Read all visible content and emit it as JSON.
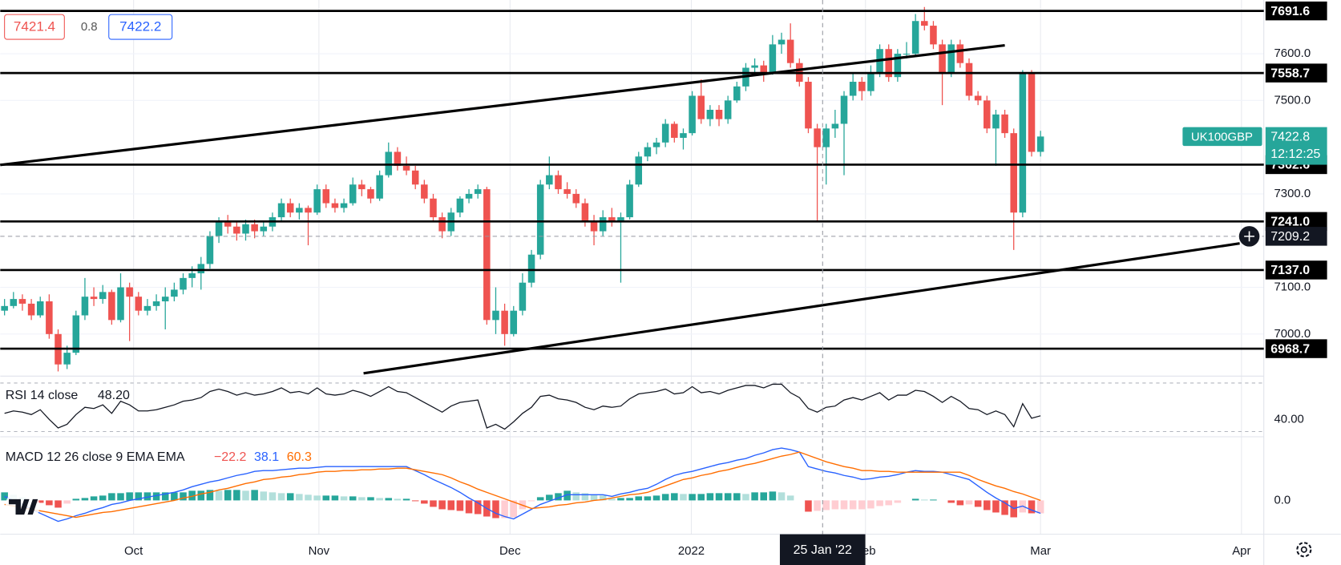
{
  "chart_data": {
    "type": "candlestick",
    "symbol": "UK100GBP",
    "bid": 7421.4,
    "spread": 0.8,
    "ask": 7422.2,
    "last_price": 7422.8,
    "countdown": "12:12:25",
    "up_color": "#26a69a",
    "down_color": "#ef5350",
    "xlim": [
      -0.48,
      141
    ],
    "xticks": [
      {
        "value": 14.45,
        "label": "Oct"
      },
      {
        "value": 35.2,
        "label": "Nov"
      },
      {
        "value": 56.6,
        "label": "Dec"
      },
      {
        "value": 76.9,
        "label": "2022"
      },
      {
        "value": 96.4,
        "label": "Feb"
      },
      {
        "value": 116,
        "label": "Mar"
      },
      {
        "value": 138.5,
        "label": "Apr"
      }
    ],
    "ylim": [
      6910,
      7715
    ],
    "yticks": [
      {
        "value": 7000,
        "label": "7000.0"
      },
      {
        "value": 7100,
        "label": "7100.0"
      },
      {
        "value": 7300,
        "label": "7300.0"
      },
      {
        "value": 7500,
        "label": "7500.0"
      },
      {
        "value": 7600,
        "label": "7600.0"
      }
    ],
    "levels": [
      7691.6,
      7558.7,
      7362.6,
      {
        "value": 7241,
        "label": "7241.0"
      },
      {
        "value": 7137,
        "label": "7137.0"
      },
      6968.7
    ],
    "trend_lines": [
      {
        "x": [
          -0.48,
          112
        ],
        "y": [
          7362,
          7618
        ]
      },
      {
        "x": [
          40.2,
          138.3
        ],
        "y": [
          6916,
          7194
        ]
      }
    ],
    "crosshair": {
      "x": 91.6,
      "x_label": "25 Jan '22",
      "price": 7209.2
    },
    "candles": [
      [
        7050,
        7075,
        7040,
        7060
      ],
      [
        7060,
        7090,
        7055,
        7075
      ],
      [
        7075,
        7085,
        7050,
        7065
      ],
      [
        7065,
        7075,
        7030,
        7040
      ],
      [
        7040,
        7080,
        7035,
        7070
      ],
      [
        7070,
        7085,
        6990,
        7000
      ],
      [
        7000,
        7010,
        6920,
        6935
      ],
      [
        6935,
        6975,
        6925,
        6960
      ],
      [
        6960,
        7050,
        6955,
        7040
      ],
      [
        7040,
        7120,
        7030,
        7080
      ],
      [
        7080,
        7100,
        7060,
        7075
      ],
      [
        7075,
        7105,
        7065,
        7090
      ],
      [
        7090,
        7095,
        7020,
        7030
      ],
      [
        7030,
        7130,
        7025,
        7100
      ],
      [
        7100,
        7110,
        6985,
        7080
      ],
      [
        7080,
        7090,
        7040,
        7050
      ],
      [
        7050,
        7075,
        7040,
        7060
      ],
      [
        7060,
        7085,
        7050,
        7070
      ],
      [
        7070,
        7100,
        7010,
        7080
      ],
      [
        7080,
        7110,
        7070,
        7095
      ],
      [
        7095,
        7130,
        7085,
        7120
      ],
      [
        7120,
        7145,
        7100,
        7130
      ],
      [
        7130,
        7165,
        7095,
        7150
      ],
      [
        7150,
        7220,
        7140,
        7210
      ],
      [
        7210,
        7250,
        7195,
        7240
      ],
      [
        7240,
        7255,
        7215,
        7230
      ],
      [
        7230,
        7240,
        7200,
        7215
      ],
      [
        7215,
        7245,
        7200,
        7235
      ],
      [
        7235,
        7245,
        7205,
        7220
      ],
      [
        7220,
        7240,
        7210,
        7230
      ],
      [
        7230,
        7260,
        7220,
        7250
      ],
      [
        7250,
        7290,
        7240,
        7280
      ],
      [
        7280,
        7290,
        7250,
        7260
      ],
      [
        7260,
        7280,
        7245,
        7270
      ],
      [
        7270,
        7275,
        7190,
        7260
      ],
      [
        7260,
        7320,
        7255,
        7310
      ],
      [
        7310,
        7320,
        7270,
        7280
      ],
      [
        7280,
        7290,
        7260,
        7270
      ],
      [
        7270,
        7290,
        7260,
        7280
      ],
      [
        7280,
        7335,
        7275,
        7320
      ],
      [
        7320,
        7330,
        7295,
        7310
      ],
      [
        7310,
        7315,
        7280,
        7290
      ],
      [
        7290,
        7350,
        7285,
        7340
      ],
      [
        7340,
        7410,
        7335,
        7390
      ],
      [
        7390,
        7400,
        7350,
        7360
      ],
      [
        7360,
        7380,
        7340,
        7350
      ],
      [
        7350,
        7360,
        7310,
        7320
      ],
      [
        7320,
        7330,
        7280,
        7290
      ],
      [
        7290,
        7300,
        7240,
        7250
      ],
      [
        7250,
        7260,
        7205,
        7220
      ],
      [
        7220,
        7270,
        7210,
        7260
      ],
      [
        7260,
        7295,
        7250,
        7290
      ],
      [
        7290,
        7310,
        7280,
        7300
      ],
      [
        7300,
        7320,
        7290,
        7310
      ],
      [
        7310,
        7315,
        7020,
        7030
      ],
      [
        7030,
        7100,
        7000,
        7050
      ],
      [
        7050,
        7065,
        6975,
        7000
      ],
      [
        7000,
        7060,
        6995,
        7050
      ],
      [
        7050,
        7130,
        7040,
        7110
      ],
      [
        7110,
        7180,
        7100,
        7170
      ],
      [
        7170,
        7330,
        7160,
        7320
      ],
      [
        7320,
        7380,
        7310,
        7340
      ],
      [
        7340,
        7350,
        7300,
        7310
      ],
      [
        7310,
        7325,
        7290,
        7300
      ],
      [
        7300,
        7310,
        7270,
        7280
      ],
      [
        7280,
        7290,
        7230,
        7240
      ],
      [
        7240,
        7255,
        7190,
        7220
      ],
      [
        7220,
        7265,
        7210,
        7250
      ],
      [
        7250,
        7270,
        7230,
        7240
      ],
      [
        7240,
        7260,
        7110,
        7250
      ],
      [
        7250,
        7330,
        7245,
        7320
      ],
      [
        7320,
        7390,
        7315,
        7380
      ],
      [
        7380,
        7410,
        7370,
        7400
      ],
      [
        7400,
        7420,
        7385,
        7410
      ],
      [
        7410,
        7460,
        7400,
        7450
      ],
      [
        7450,
        7455,
        7410,
        7420
      ],
      [
        7420,
        7440,
        7395,
        7430
      ],
      [
        7430,
        7520,
        7425,
        7510
      ],
      [
        7510,
        7545,
        7450,
        7460
      ],
      [
        7460,
        7490,
        7445,
        7480
      ],
      [
        7480,
        7490,
        7445,
        7460
      ],
      [
        7460,
        7510,
        7450,
        7500
      ],
      [
        7500,
        7540,
        7495,
        7530
      ],
      [
        7530,
        7580,
        7520,
        7570
      ],
      [
        7570,
        7590,
        7555,
        7575
      ],
      [
        7575,
        7585,
        7540,
        7560
      ],
      [
        7560,
        7640,
        7555,
        7620
      ],
      [
        7620,
        7645,
        7600,
        7630
      ],
      [
        7630,
        7665,
        7570,
        7580
      ],
      [
        7580,
        7590,
        7530,
        7540
      ],
      [
        7540,
        7550,
        7430,
        7440
      ],
      [
        7440,
        7450,
        7240,
        7400
      ],
      [
        7400,
        7450,
        7320,
        7440
      ],
      [
        7440,
        7480,
        7420,
        7450
      ],
      [
        7450,
        7520,
        7340,
        7510
      ],
      [
        7510,
        7560,
        7500,
        7540
      ],
      [
        7540,
        7550,
        7500,
        7520
      ],
      [
        7520,
        7575,
        7510,
        7560
      ],
      [
        7560,
        7620,
        7550,
        7610
      ],
      [
        7610,
        7620,
        7540,
        7550
      ],
      [
        7550,
        7610,
        7540,
        7600
      ],
      [
        7600,
        7625,
        7590,
        7600
      ],
      [
        7600,
        7685,
        7595,
        7670
      ],
      [
        7670,
        7700,
        7650,
        7660
      ],
      [
        7660,
        7670,
        7610,
        7620
      ],
      [
        7620,
        7630,
        7490,
        7560
      ],
      [
        7560,
        7630,
        7550,
        7620
      ],
      [
        7620,
        7630,
        7570,
        7580
      ],
      [
        7580,
        7590,
        7500,
        7510
      ],
      [
        7510,
        7520,
        7490,
        7500
      ],
      [
        7500,
        7510,
        7430,
        7440
      ],
      [
        7440,
        7480,
        7360,
        7470
      ],
      [
        7470,
        7480,
        7420,
        7430
      ],
      [
        7430,
        7440,
        7180,
        7260
      ],
      [
        7260,
        7565,
        7250,
        7560
      ],
      [
        7560,
        7565,
        7380,
        7390
      ],
      [
        7390,
        7435,
        7380,
        7422.8
      ]
    ],
    "rsi": {
      "title": "RSI 14 close",
      "value": {
        "value": 48.2,
        "label": "48.20"
      },
      "color": "#131722",
      "ylim": [
        25.7,
        75.7
      ],
      "yticks": [
        {
          "value": 40,
          "label": "40.00"
        }
      ],
      "bands": [
        70,
        30
      ],
      "values": [
        45,
        47,
        46,
        44,
        48,
        40,
        33,
        36,
        44,
        50,
        49,
        52,
        45,
        55,
        52,
        47,
        47,
        48,
        50,
        52,
        55,
        56,
        58,
        63,
        65,
        63,
        60,
        62,
        60,
        61,
        63,
        66,
        62,
        63,
        61,
        66,
        61,
        60,
        61,
        64,
        62,
        59,
        63,
        67,
        63,
        62,
        58,
        54,
        50,
        46,
        51,
        54,
        55,
        56,
        33,
        36,
        32,
        38,
        45,
        50,
        59,
        60,
        57,
        56,
        54,
        50,
        48,
        51,
        50,
        51,
        57,
        61,
        62,
        63,
        65,
        61,
        62,
        67,
        62,
        63,
        61,
        64,
        66,
        68,
        68,
        66,
        69,
        69,
        62,
        58,
        49,
        46,
        50,
        51,
        56,
        58,
        56,
        59,
        62,
        56,
        60,
        60,
        64,
        63,
        59,
        54,
        59,
        55,
        49,
        48,
        44,
        47,
        44,
        34,
        53,
        41,
        43
      ]
    },
    "macd": {
      "title": "MACD 12 26 close 9 EMA EMA",
      "legend": [
        {
          "value": -22.2,
          "label": "−22.2",
          "color": "#ef5350"
        },
        {
          "value": 38.1,
          "label": "38.1",
          "color": "#2962ff"
        },
        {
          "value": 60.3,
          "label": "60.3",
          "color": "#ff6d00"
        }
      ],
      "ylim": [
        -42,
        79
      ],
      "yticks": [
        {
          "value": 0,
          "label": "0.0"
        }
      ],
      "hist_colors": [
        "#26a69a",
        "#b2dfdb",
        "#ffcdd2",
        "#ef5350"
      ],
      "histogram": [
        10,
        7,
        4,
        0,
        -3,
        -6,
        -9,
        -4,
        2,
        3,
        5,
        6,
        9,
        9,
        10,
        10,
        10,
        10,
        10,
        10,
        10,
        12,
        12,
        13,
        12,
        13,
        13,
        12,
        13,
        11,
        10,
        9,
        9,
        8,
        7,
        6,
        6,
        6,
        5,
        5,
        4,
        4,
        3,
        3,
        2,
        2,
        -1,
        -4,
        -8,
        -11,
        -12,
        -13,
        -16,
        -17,
        -20,
        -22,
        -22,
        -21,
        -11,
        -1,
        4,
        7,
        9,
        12,
        10,
        9,
        7,
        6,
        2,
        3,
        3,
        5,
        5,
        6,
        8,
        9,
        8,
        8,
        8,
        9,
        9,
        9,
        9,
        8,
        10,
        10,
        11,
        10,
        6,
        0,
        -14,
        -13,
        -12,
        -11,
        -11,
        -11,
        -11,
        -10,
        -7,
        -6,
        -3,
        0,
        2,
        1,
        1,
        0,
        -3,
        -6,
        -5,
        -8,
        -12,
        -15,
        -18,
        -21,
        -15,
        -16,
        -16
      ],
      "series": [
        {
          "color": "#2962ff",
          "values": [
            5,
            0,
            -5,
            -11,
            -16,
            -21,
            -26,
            -23,
            -19,
            -16,
            -12,
            -9,
            -5,
            -3,
            0,
            2,
            4,
            6,
            8,
            10,
            13,
            17,
            20,
            23,
            25,
            28,
            31,
            33,
            36,
            37,
            37,
            38,
            39,
            40,
            40,
            41,
            42,
            42,
            42,
            42,
            42,
            42,
            42,
            42,
            42,
            42,
            37,
            32,
            26,
            21,
            16,
            10,
            3,
            -3,
            -10,
            -16,
            -20,
            -23,
            -17,
            -11,
            -5,
            -1,
            3,
            7,
            7,
            7,
            7,
            7,
            5,
            8,
            10,
            13,
            15,
            20,
            26,
            31,
            34,
            36,
            39,
            42,
            45,
            47,
            50,
            52,
            56,
            59,
            63,
            65,
            63,
            60,
            42,
            39,
            36,
            34,
            31,
            29,
            26,
            27,
            29,
            30,
            32,
            35,
            37,
            36,
            36,
            35,
            32,
            29,
            26,
            18,
            10,
            3,
            -3,
            -10,
            -7,
            -12,
            -16
          ]
        },
        {
          "color": "#ff6d00",
          "values": [
            -5,
            -7,
            -9,
            -11,
            -13,
            -15,
            -17,
            -19,
            -21,
            -19,
            -17,
            -15,
            -14,
            -12,
            -10,
            -8,
            -6,
            -4,
            -2,
            0,
            3,
            5,
            8,
            10,
            13,
            15,
            18,
            21,
            23,
            26,
            27,
            29,
            30,
            32,
            33,
            35,
            36,
            36,
            37,
            37,
            38,
            38,
            39,
            39,
            40,
            40,
            38,
            36,
            34,
            32,
            28,
            23,
            19,
            14,
            10,
            6,
            2,
            -2,
            -6,
            -10,
            -9,
            -8,
            -6,
            -5,
            -3,
            -2,
            0,
            1,
            3,
            5,
            7,
            8,
            10,
            14,
            18,
            22,
            26,
            28,
            31,
            33,
            36,
            38,
            41,
            44,
            46,
            49,
            52,
            55,
            57,
            60,
            56,
            52,
            48,
            45,
            42,
            40,
            37,
            37,
            36,
            36,
            35,
            35,
            35,
            35,
            35,
            35,
            35,
            35,
            31,
            26,
            22,
            18,
            15,
            11,
            8,
            4,
            0
          ]
        }
      ]
    }
  }
}
